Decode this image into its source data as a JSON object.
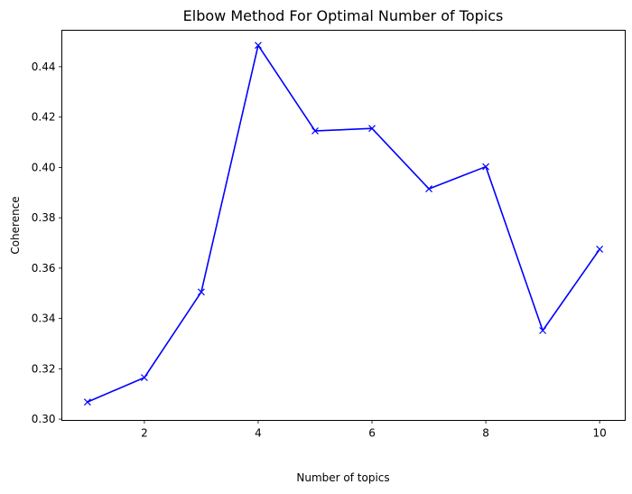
{
  "chart_data": {
    "type": "line",
    "title": "Elbow Method For Optimal Number of Topics",
    "xlabel": "Number of topics",
    "ylabel": "Coherence",
    "xlim": [
      0.55,
      10.45
    ],
    "ylim": [
      0.2995,
      0.4545
    ],
    "x_ticks": [
      2,
      4,
      6,
      8,
      10
    ],
    "y_ticks": [
      0.3,
      0.32,
      0.34,
      0.36,
      0.38,
      0.4,
      0.42,
      0.44
    ],
    "x_tick_labels": [
      "2",
      "4",
      "6",
      "8",
      "10"
    ],
    "y_tick_labels": [
      "0.30",
      "0.32",
      "0.34",
      "0.36",
      "0.38",
      "0.40",
      "0.42",
      "0.44"
    ],
    "grid": false,
    "marker": "x",
    "series": [
      {
        "color": "#0000ff",
        "x": [
          1,
          2,
          3,
          4,
          5,
          6,
          7,
          8,
          9,
          10
        ],
        "y": [
          0.3068,
          0.3165,
          0.3505,
          0.4485,
          0.4145,
          0.4155,
          0.3915,
          0.4003,
          0.3352,
          0.3675
        ]
      }
    ]
  }
}
